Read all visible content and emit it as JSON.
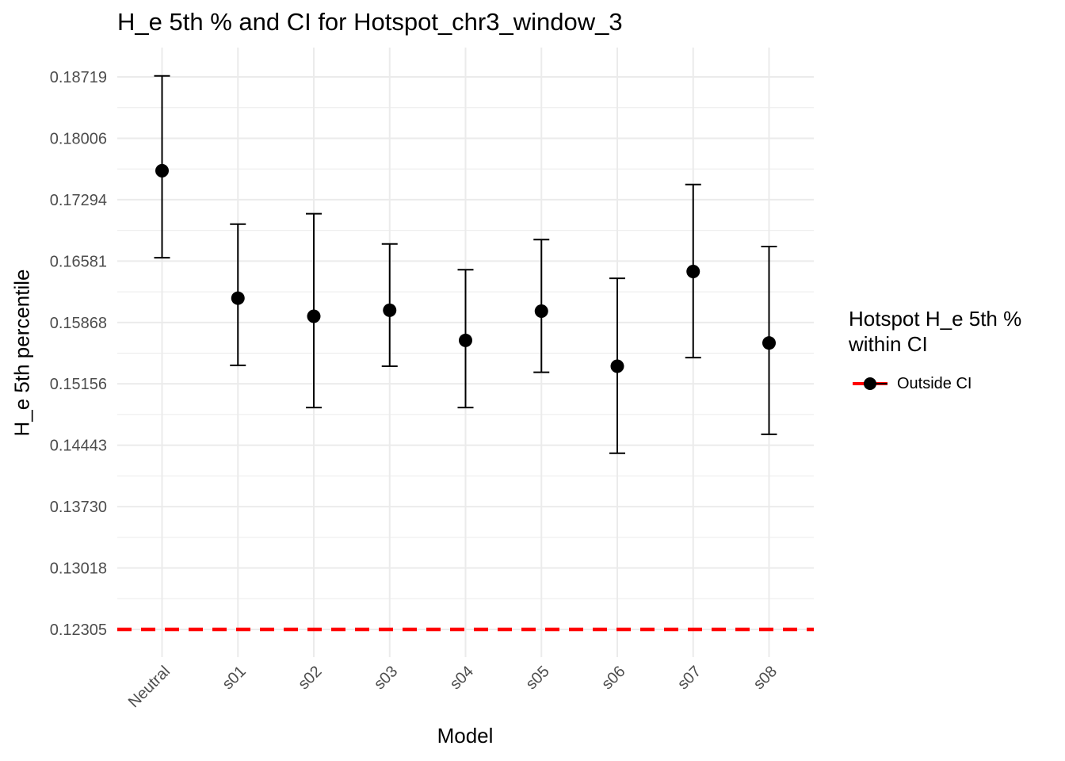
{
  "chart_data": {
    "type": "scatter",
    "title": "H_e 5th % and CI for Hotspot_chr3_window_3",
    "xlabel": "Model",
    "ylabel": "H_e 5th percentile",
    "categories": [
      "Neutral",
      "s01",
      "s02",
      "s03",
      "s04",
      "s05",
      "s06",
      "s07",
      "s08"
    ],
    "series": [
      {
        "type": "point-with-errorbar",
        "points": [
          0.1763,
          0.1615,
          0.1594,
          0.1601,
          0.1566,
          0.16,
          0.1536,
          0.1646,
          0.1563
        ],
        "ci_lower": [
          0.1662,
          0.1537,
          0.1488,
          0.1536,
          0.1488,
          0.1529,
          0.1435,
          0.1546,
          0.1457
        ],
        "ci_upper": [
          0.1873,
          0.1701,
          0.1713,
          0.1678,
          0.1648,
          0.1683,
          0.1638,
          0.1747,
          0.1675
        ]
      }
    ],
    "reference_line": {
      "y": 0.12305,
      "color": "#ff0000",
      "style": "dashed"
    },
    "yticks": [
      "0.12305",
      "0.13018",
      "0.13730",
      "0.14443",
      "0.15156",
      "0.15868",
      "0.16581",
      "0.17294",
      "0.18006",
      "0.18719"
    ],
    "ylim": [
      0.121,
      0.1904
    ],
    "legend": {
      "title_line1": "Hotspot H_e 5th %",
      "title_line2": "within CI",
      "items": [
        {
          "label": "Outside CI",
          "color": "#ff0000"
        }
      ],
      "position": "right"
    },
    "grid": true,
    "colors": {
      "point": "#000000",
      "errorbar": "#000000",
      "grid": "#ebebeb",
      "ticklabel": "#4d4d4d",
      "refline": "#ff0000"
    }
  }
}
